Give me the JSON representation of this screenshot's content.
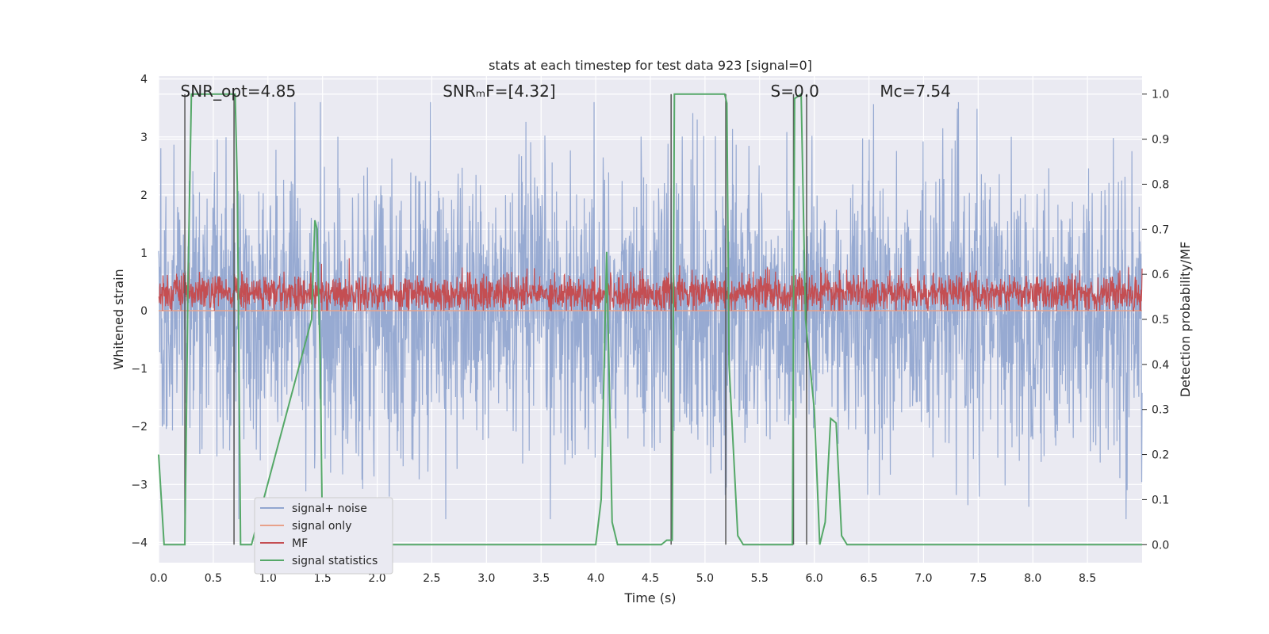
{
  "chart_data": {
    "type": "line",
    "title": "stats at each timestep for test data 923 [signal=0]",
    "xlabel": "Time (s)",
    "ylabel": "Whitened strain",
    "y2label": "Detection probability/MF",
    "xlim": [
      0.0,
      9.0
    ],
    "ylim": [
      -4.35,
      4.05
    ],
    "y2lim": [
      -0.04,
      1.04
    ],
    "xticks": [
      0.0,
      0.5,
      1.0,
      1.5,
      2.0,
      2.5,
      3.0,
      3.5,
      4.0,
      4.5,
      5.0,
      5.5,
      6.0,
      6.5,
      7.0,
      7.5,
      8.0,
      8.5
    ],
    "xtick_labels": [
      "0.0",
      "0.5",
      "1.0",
      "1.5",
      "2.0",
      "2.5",
      "3.0",
      "3.5",
      "4.0",
      "4.5",
      "5.0",
      "5.5",
      "6.0",
      "6.5",
      "7.0",
      "7.5",
      "8.0",
      "8.5"
    ],
    "yticks": [
      4,
      3,
      2,
      1,
      0,
      -1,
      -2,
      -3,
      -4
    ],
    "ytick_labels": [
      "4",
      "3",
      "2",
      "1",
      "0",
      "−1",
      "−2",
      "−3",
      "−4"
    ],
    "y2ticks": [
      1.0,
      0.9,
      0.8,
      0.7,
      0.6,
      0.5,
      0.4,
      0.3,
      0.2,
      0.1,
      0.0
    ],
    "y2tick_labels": [
      "1.0",
      "0.9",
      "0.8",
      "0.7",
      "0.6",
      "0.5",
      "0.4",
      "0.3",
      "0.2",
      "0.1",
      "0.0"
    ],
    "annotations": [
      {
        "id": "snr-opt",
        "text": "SNR_opt=4.85",
        "x": 0.2
      },
      {
        "id": "snr-mf",
        "text": "SNRₘF=[4.32]",
        "x": 2.6
      },
      {
        "id": "s-stat",
        "text": "S=0.0",
        "x": 5.6
      },
      {
        "id": "mc",
        "text": "Mᴄ=7.54",
        "x": 6.6
      }
    ],
    "legend": {
      "placement": "lower-left",
      "entries": [
        {
          "label": "signal+ noise",
          "color": "#92a6d0"
        },
        {
          "label": "signal only",
          "color": "#e8a18a"
        },
        {
          "label": "MF",
          "color": "#c44e52"
        },
        {
          "label": "signal statistics",
          "color": "#55a868"
        }
      ]
    },
    "series": [
      {
        "name": "signal+ noise",
        "axis": "left",
        "color": "#92a6d0",
        "kind": "noise",
        "amplitude": 1.2,
        "max_abs": 3.6,
        "n": 2700
      },
      {
        "name": "signal only",
        "axis": "left",
        "color": "#e8a18a",
        "kind": "constant",
        "value": 0.0
      },
      {
        "name": "MF",
        "axis": "left",
        "color": "#c44e52",
        "kind": "band",
        "center": 0.3,
        "amplitude": 0.16,
        "max": 1.0,
        "n": 2700
      },
      {
        "name": "signal statistics",
        "axis": "right",
        "color": "#55a868",
        "kind": "line",
        "x": [
          0.0,
          0.05,
          0.24,
          0.27,
          0.3,
          0.7,
          0.72,
          0.75,
          0.8,
          0.85,
          1.4,
          1.43,
          1.45,
          1.48,
          1.5,
          1.6,
          2.0,
          4.0,
          4.05,
          4.1,
          4.15,
          4.2,
          4.6,
          4.65,
          4.7,
          4.72,
          5.18,
          5.2,
          5.22,
          5.3,
          5.35,
          5.45,
          5.8,
          5.82,
          5.88,
          5.92,
          6.0,
          6.05,
          6.1,
          6.15,
          6.2,
          6.25,
          6.3,
          9.0
        ],
        "y": [
          0.2,
          0.0,
          0.0,
          0.6,
          1.0,
          1.0,
          0.8,
          0.0,
          0.0,
          0.0,
          0.5,
          0.72,
          0.7,
          0.4,
          0.0,
          0.0,
          0.0,
          0.0,
          0.1,
          0.65,
          0.05,
          0.0,
          0.0,
          0.01,
          0.01,
          1.0,
          1.0,
          0.98,
          0.4,
          0.02,
          0.0,
          0.0,
          0.0,
          0.99,
          1.0,
          0.5,
          0.3,
          0.0,
          0.05,
          0.28,
          0.27,
          0.02,
          0.0,
          0.0
        ]
      }
    ],
    "vertical_lines": [
      0.24,
      0.69,
      4.69,
      5.19,
      5.81,
      5.93
    ]
  }
}
